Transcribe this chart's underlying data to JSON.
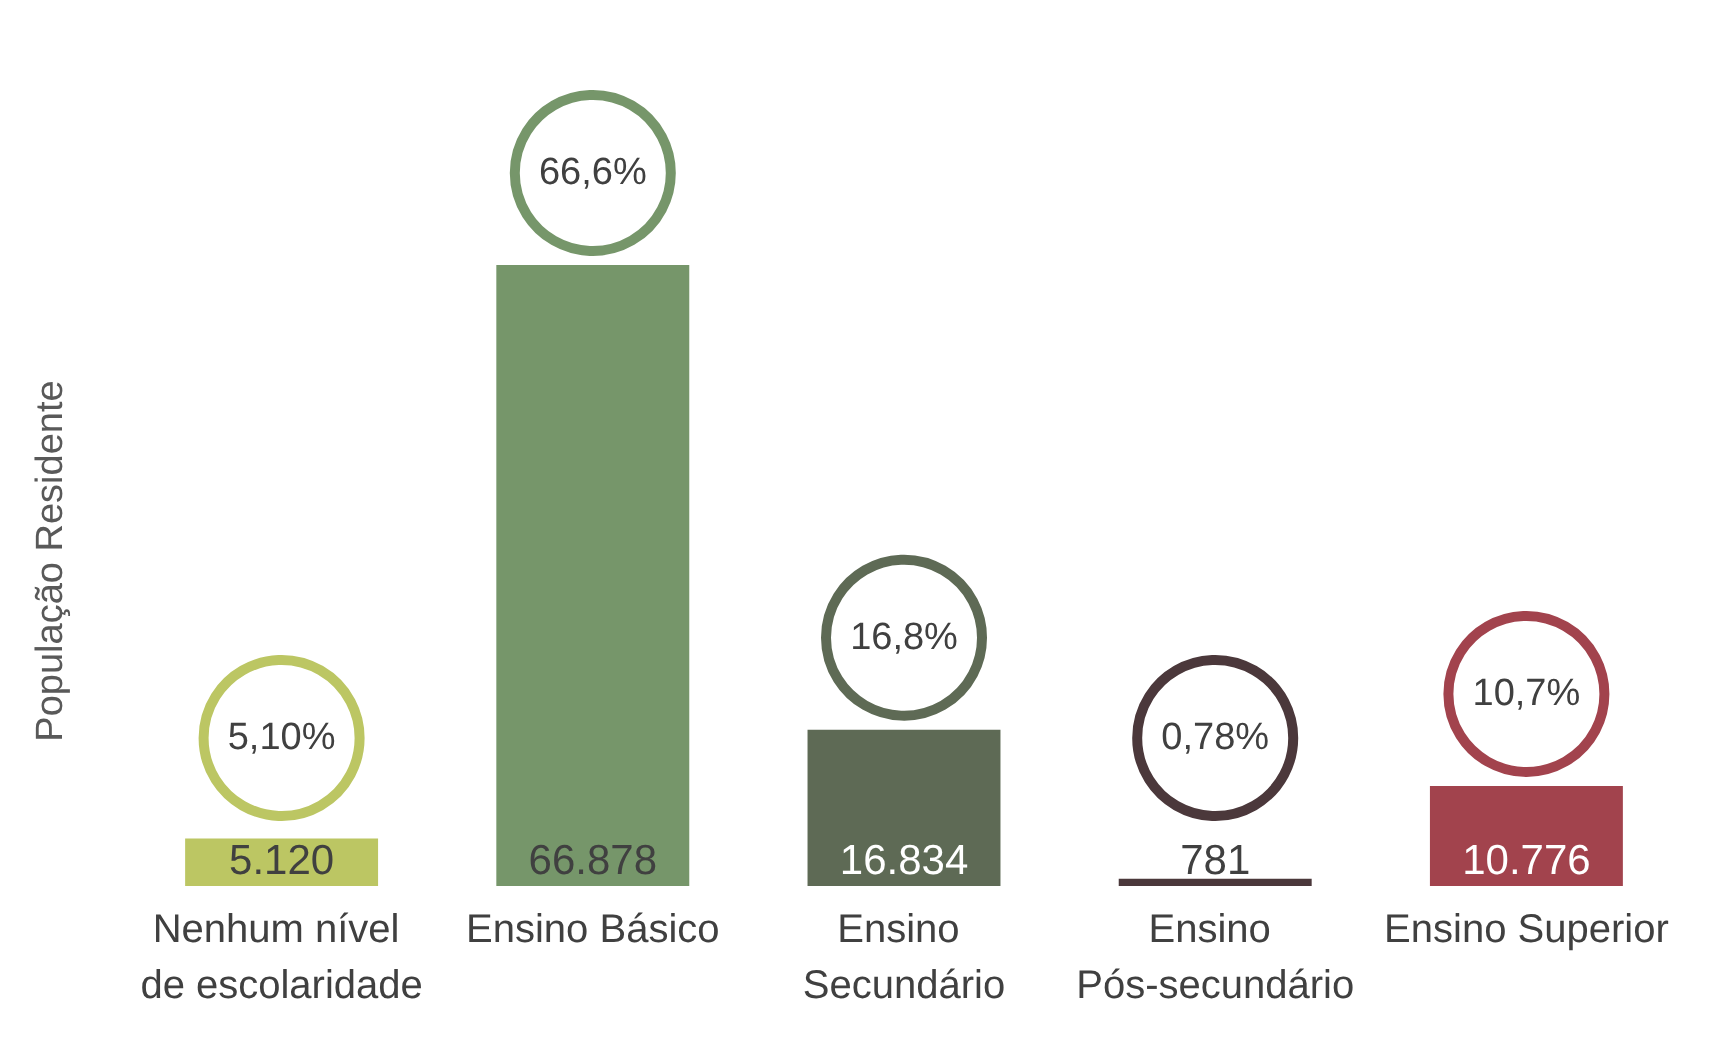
{
  "chart_data": {
    "type": "bar",
    "ylabel": "População Residente",
    "categories": [
      "Nenhum nível de escolaridade",
      "Ensino Básico",
      "Ensino Secundário",
      "Ensino Pós-secundário",
      "Ensino Superior"
    ],
    "values": [
      5120,
      66878,
      16834,
      781,
      10776
    ],
    "colors": [
      "#bcc663",
      "#76966a",
      "#5e6a55",
      "#4b383b",
      "#a2434d"
    ],
    "value_labels": [
      "5.120",
      "66.878",
      "16.834",
      "781",
      "10.776"
    ],
    "annotations": [
      "5,10%",
      "66,6%",
      "16,8%",
      "0,78%",
      "10,7%"
    ],
    "tick_labels": "x",
    "grid": false
  }
}
